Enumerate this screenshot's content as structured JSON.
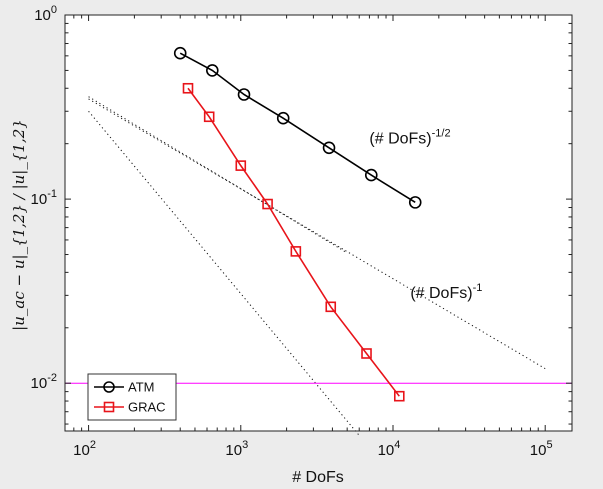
{
  "chart_data": {
    "type": "line",
    "xscale": "log",
    "yscale": "log",
    "xlim": [
      70,
      150000
    ],
    "ylim": [
      0.0055,
      1
    ],
    "xlabel": "# DoFs",
    "ylabel": "|u_ac − u|_{1,2} / |u|_{1,2}",
    "xticks": [
      {
        "base": "10",
        "exp": "2"
      },
      {
        "base": "10",
        "exp": "3"
      },
      {
        "base": "10",
        "exp": "4"
      },
      {
        "base": "10",
        "exp": "5"
      }
    ],
    "yticks": [
      {
        "base": "10",
        "exp": "-2"
      },
      {
        "base": "10",
        "exp": "-1"
      },
      {
        "base": "10",
        "exp": "0"
      }
    ],
    "series": [
      {
        "name": "ATM",
        "color": "#000000",
        "marker": "circle",
        "x": [
          400,
          650,
          1050,
          1900,
          3800,
          7200,
          14000
        ],
        "y": [
          0.62,
          0.5,
          0.37,
          0.275,
          0.19,
          0.135,
          0.096
        ]
      },
      {
        "name": "GRAC",
        "color": "#e8141a",
        "marker": "square",
        "x": [
          450,
          620,
          1000,
          1500,
          2300,
          3900,
          6700,
          11000
        ],
        "y": [
          0.4,
          0.28,
          0.152,
          0.094,
          0.052,
          0.026,
          0.0145,
          0.0085
        ]
      }
    ],
    "reference_lines": [
      {
        "label_base": "(# DoFs)",
        "label_exp": "-1/2",
        "x": [
          100,
          5000
        ],
        "y": [
          0.36,
          0.051
        ],
        "style": "dotted"
      },
      {
        "label_base": "(# DoFs)",
        "label_exp": "-1",
        "x": [
          100,
          100000
        ],
        "y": [
          0.35,
          0.012
        ],
        "style": "dotted"
      },
      {
        "label_base": "",
        "label_exp": "",
        "x": [
          100,
          6000
        ],
        "y": [
          0.3,
          0.0052
        ],
        "style": "dotted"
      }
    ],
    "hline": {
      "y": 0.01,
      "color": "#ff00ff"
    },
    "annotations": [
      {
        "base": "(# DoFs)",
        "exp": "-1/2",
        "x": 7000,
        "y": 0.2
      },
      {
        "base": "(# DoFs)",
        "exp": "-1",
        "x": 13000,
        "y": 0.029
      }
    ],
    "legend": {
      "position": "bottom-left",
      "entries": [
        "ATM",
        "GRAC"
      ]
    },
    "grid": false
  }
}
